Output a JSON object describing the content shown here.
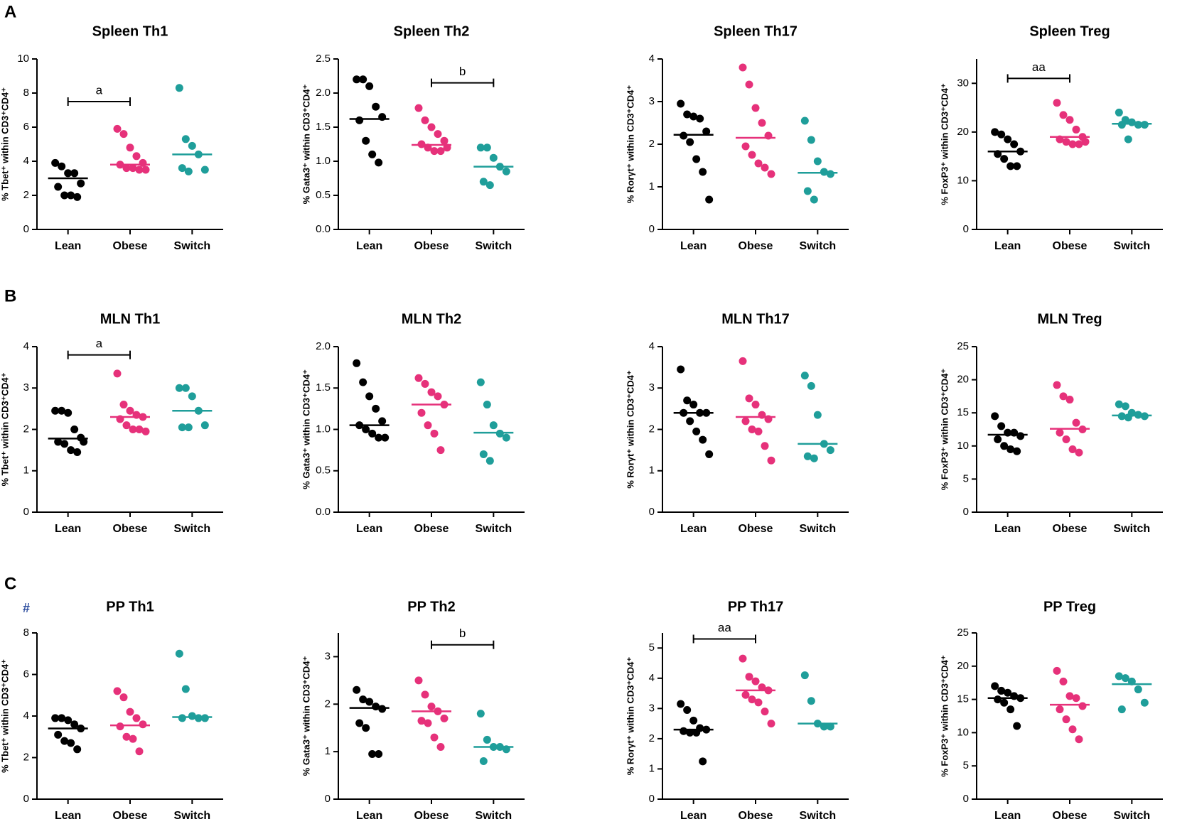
{
  "panels": [
    "A",
    "B",
    "C"
  ],
  "note": "#",
  "chart_data": [
    {
      "type": "scatter",
      "title": "Spleen Th1",
      "ylabel": "% Tbet⁺ within CD3⁺CD4⁺",
      "categories": [
        "Lean",
        "Obese",
        "Switch"
      ],
      "colors": [
        "#000000",
        "#e6317a",
        "#1f9e9a"
      ],
      "values": [
        [
          3.9,
          3.7,
          3.3,
          3.3,
          2.7,
          2.5,
          2.0,
          2.0,
          1.9
        ],
        [
          5.9,
          5.6,
          4.8,
          4.3,
          3.9,
          3.8,
          3.6,
          3.6,
          3.5,
          3.5
        ],
        [
          8.3,
          5.3,
          4.9,
          4.4,
          3.5,
          3.6,
          3.4
        ]
      ],
      "medians": [
        3.0,
        3.8,
        4.4
      ],
      "ylim": [
        0,
        10
      ],
      "yticks": [
        0,
        2,
        4,
        6,
        8,
        10
      ],
      "annotations": [
        {
          "label": "a",
          "from": "Lean",
          "to": "Obese",
          "y": 7.5
        }
      ]
    },
    {
      "type": "scatter",
      "title": "Spleen Th2",
      "ylabel": "% Gata3⁺ within CD3⁺CD4⁺",
      "categories": [
        "Lean",
        "Obese",
        "Switch"
      ],
      "colors": [
        "#000000",
        "#e6317a",
        "#1f9e9a"
      ],
      "values": [
        [
          2.2,
          2.2,
          2.1,
          1.8,
          1.65,
          1.6,
          1.3,
          1.1,
          0.98
        ],
        [
          1.78,
          1.6,
          1.5,
          1.4,
          1.3,
          1.25,
          1.2,
          1.15,
          1.15,
          1.2
        ],
        [
          1.2,
          1.2,
          1.05,
          0.92,
          0.85,
          0.7,
          0.65
        ]
      ],
      "medians": [
        1.62,
        1.24,
        0.92
      ],
      "ylim": [
        0,
        2.5
      ],
      "yticks": [
        {
          "value": 0,
          "label": "0.0"
        },
        0.5,
        {
          "value": 1,
          "label": "1.0"
        },
        1.5,
        {
          "value": 2,
          "label": "2.0"
        },
        2.5
      ],
      "annotations": [
        {
          "label": "b",
          "from": "Obese",
          "to": "Switch",
          "y": 2.15
        }
      ]
    },
    {
      "type": "scatter",
      "title": "Spleen Th17",
      "ylabel": "% Rorγt⁺ within CD3⁺CD4⁺",
      "categories": [
        "Lean",
        "Obese",
        "Switch"
      ],
      "colors": [
        "#000000",
        "#e6317a",
        "#1f9e9a"
      ],
      "values": [
        [
          2.95,
          2.7,
          2.65,
          2.6,
          2.3,
          2.2,
          2.05,
          1.65,
          1.35,
          0.7
        ],
        [
          3.8,
          3.4,
          2.85,
          2.5,
          2.2,
          1.95,
          1.75,
          1.55,
          1.45,
          1.3
        ],
        [
          2.55,
          2.1,
          1.6,
          1.35,
          1.3,
          0.9,
          0.7
        ]
      ],
      "medians": [
        2.22,
        2.15,
        1.33
      ],
      "ylim": [
        0,
        4
      ],
      "yticks": [
        0,
        1,
        2,
        3,
        4
      ],
      "annotations": []
    },
    {
      "type": "scatter",
      "title": "Spleen Treg",
      "ylabel": "% FoxP3⁺ within CD3⁺CD4⁺",
      "categories": [
        "Lean",
        "Obese",
        "Switch"
      ],
      "colors": [
        "#000000",
        "#e6317a",
        "#1f9e9a"
      ],
      "values": [
        [
          20,
          19.5,
          18.5,
          17.5,
          16,
          15.5,
          14.5,
          13,
          13
        ],
        [
          26,
          23.5,
          22.5,
          20.5,
          19,
          18.5,
          18,
          17.5,
          17.5,
          18
        ],
        [
          24,
          22.5,
          22,
          21.5,
          21.5,
          21.5,
          18.5
        ]
      ],
      "medians": [
        16,
        19,
        21.7
      ],
      "ylim": [
        0,
        35
      ],
      "yticks": [
        0,
        10,
        20,
        30
      ],
      "annotations": [
        {
          "label": "aa",
          "from": "Lean",
          "to": "Obese",
          "y": 31
        }
      ]
    },
    {
      "type": "scatter",
      "title": "MLN Th1",
      "ylabel": "% Tbet⁺ within CD3⁺CD4⁺",
      "categories": [
        "Lean",
        "Obese",
        "Switch"
      ],
      "colors": [
        "#000000",
        "#e6317a",
        "#1f9e9a"
      ],
      "values": [
        [
          2.45,
          2.45,
          2.4,
          2.0,
          1.8,
          1.7,
          1.65,
          1.5,
          1.45,
          1.7
        ],
        [
          3.35,
          2.6,
          2.45,
          2.35,
          2.3,
          2.25,
          2.1,
          2.0,
          2.0,
          1.95
        ],
        [
          3.0,
          3.0,
          2.8,
          2.45,
          2.1,
          2.05,
          2.05
        ]
      ],
      "medians": [
        1.78,
        2.3,
        2.45
      ],
      "ylim": [
        0,
        4
      ],
      "yticks": [
        0,
        1,
        2,
        3,
        4
      ],
      "annotations": [
        {
          "label": "a",
          "from": "Lean",
          "to": "Obese",
          "y": 3.8
        }
      ]
    },
    {
      "type": "scatter",
      "title": "MLN Th2",
      "ylabel": "% Gata3⁺ within CD3⁺CD4⁺",
      "categories": [
        "Lean",
        "Obese",
        "Switch"
      ],
      "colors": [
        "#000000",
        "#e6317a",
        "#1f9e9a"
      ],
      "values": [
        [
          1.8,
          1.57,
          1.4,
          1.25,
          1.1,
          1.05,
          1.0,
          0.95,
          0.9,
          0.9
        ],
        [
          1.62,
          1.55,
          1.45,
          1.4,
          1.3,
          1.2,
          1.05,
          0.95,
          0.75
        ],
        [
          1.57,
          1.3,
          1.05,
          0.95,
          0.9,
          0.7,
          0.62
        ]
      ],
      "medians": [
        1.05,
        1.3,
        0.96
      ],
      "ylim": [
        0,
        2
      ],
      "yticks": [
        {
          "value": 0,
          "label": "0.0"
        },
        0.5,
        {
          "value": 1,
          "label": "1.0"
        },
        1.5,
        {
          "value": 2,
          "label": "2.0"
        }
      ],
      "annotations": []
    },
    {
      "type": "scatter",
      "title": "MLN Th17",
      "ylabel": "% Rorγt⁺ within CD3⁺CD4⁺",
      "categories": [
        "Lean",
        "Obese",
        "Switch"
      ],
      "colors": [
        "#000000",
        "#e6317a",
        "#1f9e9a"
      ],
      "values": [
        [
          3.45,
          2.7,
          2.6,
          2.4,
          2.4,
          2.4,
          2.2,
          1.95,
          1.75,
          1.4
        ],
        [
          3.65,
          2.75,
          2.6,
          2.35,
          2.25,
          2.2,
          2.0,
          1.95,
          1.6,
          1.25
        ],
        [
          3.3,
          3.05,
          2.35,
          1.65,
          1.5,
          1.35,
          1.3
        ]
      ],
      "medians": [
        2.4,
        2.3,
        1.65
      ],
      "ylim": [
        0,
        4
      ],
      "yticks": [
        0,
        1,
        2,
        3,
        4
      ],
      "annotations": []
    },
    {
      "type": "scatter",
      "title": "MLN Treg",
      "ylabel": "% FoxP3⁺ within CD3⁺CD4⁺",
      "categories": [
        "Lean",
        "Obese",
        "Switch"
      ],
      "colors": [
        "#000000",
        "#e6317a",
        "#1f9e9a"
      ],
      "values": [
        [
          14.5,
          13,
          12,
          12,
          11.5,
          11,
          10,
          9.5,
          9.2
        ],
        [
          19.2,
          17.5,
          17,
          13.5,
          12.5,
          12,
          11,
          9.5,
          9
        ],
        [
          16.3,
          16,
          15,
          14.7,
          14.5,
          14.5,
          14.3
        ]
      ],
      "medians": [
        11.7,
        12.6,
        14.6
      ],
      "ylim": [
        0,
        25
      ],
      "yticks": [
        0,
        5,
        10,
        15,
        20,
        25
      ],
      "annotations": []
    },
    {
      "type": "scatter",
      "title": "PP Th1",
      "ylabel": "% Tbet⁺ within CD3⁺CD4⁺",
      "categories": [
        "Lean",
        "Obese",
        "Switch"
      ],
      "colors": [
        "#000000",
        "#e6317a",
        "#1f9e9a"
      ],
      "values": [
        [
          3.9,
          3.9,
          3.8,
          3.6,
          3.4,
          3.1,
          2.8,
          2.7,
          2.4
        ],
        [
          5.2,
          4.9,
          4.2,
          3.9,
          3.6,
          3.5,
          3.0,
          2.9,
          2.3
        ],
        [
          7.0,
          5.3,
          4.0,
          3.9,
          3.9,
          3.9
        ]
      ],
      "medians": [
        3.4,
        3.55,
        3.95
      ],
      "ylim": [
        0,
        8
      ],
      "yticks": [
        0,
        2,
        4,
        6,
        8
      ],
      "annotations": []
    },
    {
      "type": "scatter",
      "title": "PP Th2",
      "ylabel": "% Gata3⁺ within CD3⁺CD4⁺",
      "categories": [
        "Lean",
        "Obese",
        "Switch"
      ],
      "colors": [
        "#000000",
        "#e6317a",
        "#1f9e9a"
      ],
      "values": [
        [
          2.3,
          2.1,
          2.05,
          1.95,
          1.9,
          1.6,
          1.5,
          0.95,
          0.95
        ],
        [
          2.5,
          2.2,
          1.95,
          1.85,
          1.7,
          1.65,
          1.6,
          1.3,
          1.1
        ],
        [
          1.8,
          1.25,
          1.1,
          1.1,
          1.05,
          0.8
        ]
      ],
      "medians": [
        1.92,
        1.85,
        1.1
      ],
      "ylim": [
        0,
        3.5
      ],
      "yticks": [
        0,
        1,
        2,
        3
      ],
      "annotations": [
        {
          "label": "b",
          "from": "Obese",
          "to": "Switch",
          "y": 3.25
        }
      ]
    },
    {
      "type": "scatter",
      "title": "PP Th17",
      "ylabel": "% Rorγt⁺ within CD3⁺CD4⁺",
      "categories": [
        "Lean",
        "Obese",
        "Switch"
      ],
      "colors": [
        "#000000",
        "#e6317a",
        "#1f9e9a"
      ],
      "values": [
        [
          3.15,
          2.95,
          2.6,
          2.35,
          2.3,
          2.25,
          2.2,
          2.2,
          1.25
        ],
        [
          4.65,
          4.05,
          3.9,
          3.7,
          3.6,
          3.45,
          3.3,
          3.2,
          2.9,
          2.5
        ],
        [
          4.1,
          3.25,
          2.5,
          2.4,
          2.4
        ]
      ],
      "medians": [
        2.3,
        3.6,
        2.5
      ],
      "ylim": [
        0,
        5.5
      ],
      "yticks": [
        0,
        1,
        2,
        3,
        4,
        5
      ],
      "annotations": [
        {
          "label": "aa",
          "from": "Lean",
          "to": "Obese",
          "y": 5.3
        }
      ]
    },
    {
      "type": "scatter",
      "title": "PP Treg",
      "ylabel": "% FoxP3⁺ within CD3⁺CD4⁺",
      "categories": [
        "Lean",
        "Obese",
        "Switch"
      ],
      "colors": [
        "#000000",
        "#e6317a",
        "#1f9e9a"
      ],
      "values": [
        [
          17,
          16.3,
          16,
          15.5,
          15.2,
          15,
          14.5,
          13.5,
          11
        ],
        [
          19.3,
          17.7,
          15.5,
          15.2,
          14,
          13.5,
          12,
          10.5,
          9
        ],
        [
          18.5,
          18.2,
          17.7,
          16.5,
          14.5,
          13.5
        ]
      ],
      "medians": [
        15.2,
        14.2,
        17.3
      ],
      "ylim": [
        0,
        25
      ],
      "yticks": [
        0,
        5,
        10,
        15,
        20,
        25
      ],
      "annotations": []
    }
  ]
}
